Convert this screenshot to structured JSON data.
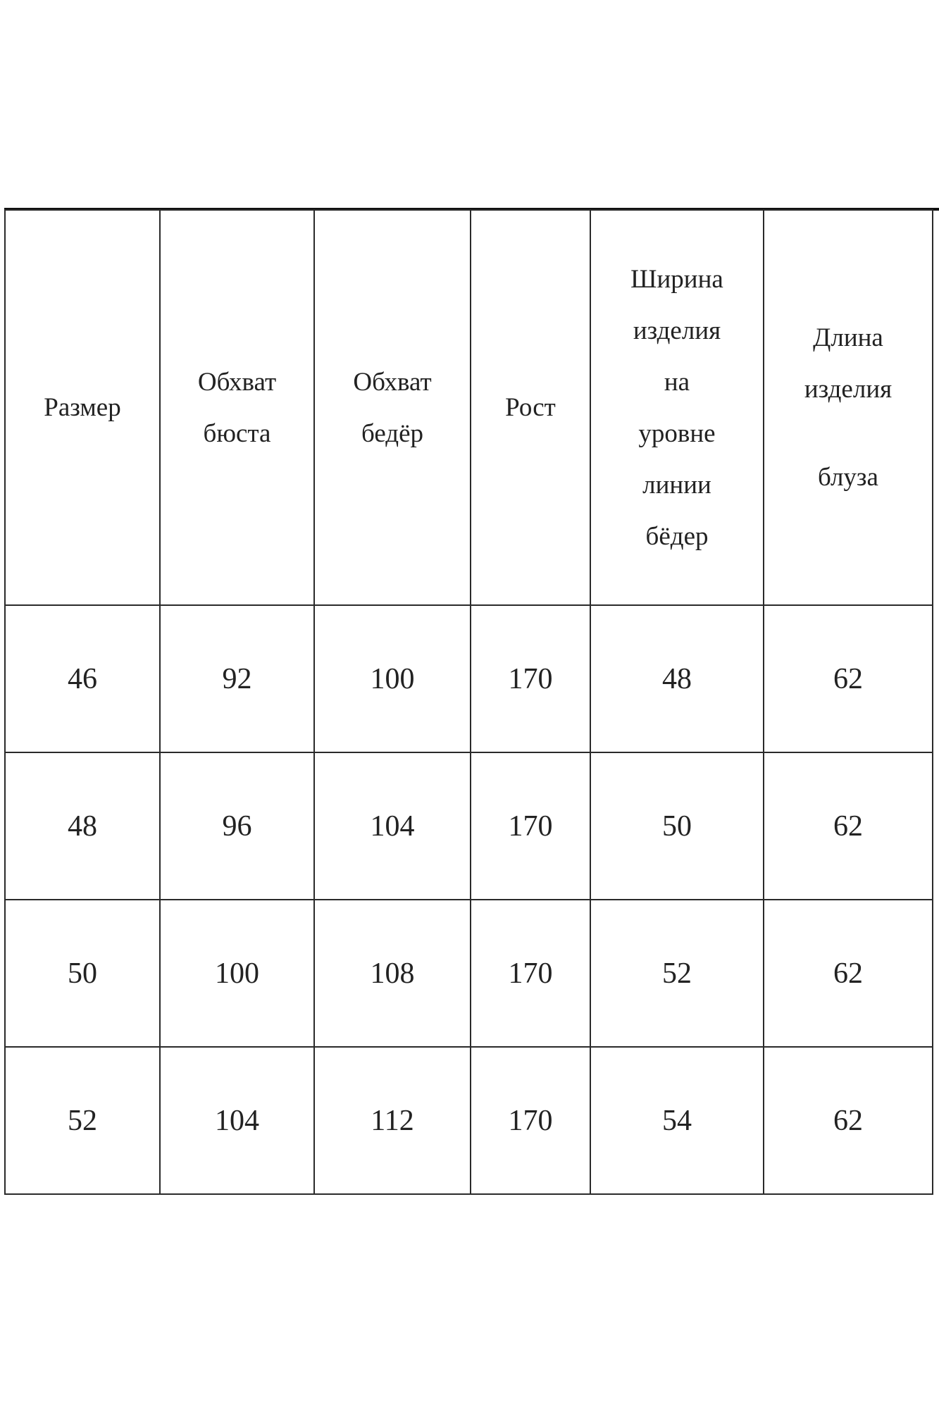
{
  "table": {
    "headers": [
      {
        "lines": [
          "Размер"
        ]
      },
      {
        "lines": [
          "Обхват",
          "бюста"
        ]
      },
      {
        "lines": [
          "Обхват",
          "бедёр"
        ]
      },
      {
        "lines": [
          "Рост"
        ]
      },
      {
        "lines": [
          "Ширина",
          "изделия",
          "на",
          "уровне",
          "линии",
          "бёдер"
        ]
      },
      {
        "lines": [
          "Длина",
          "изделия",
          "блуза"
        ]
      }
    ],
    "rows": [
      [
        "46",
        "92",
        "100",
        "170",
        "48",
        "62"
      ],
      [
        "48",
        "96",
        "104",
        "170",
        "50",
        "62"
      ],
      [
        "50",
        "100",
        "108",
        "170",
        "52",
        "62"
      ],
      [
        "52",
        "104",
        "112",
        "170",
        "54",
        "62"
      ]
    ]
  }
}
